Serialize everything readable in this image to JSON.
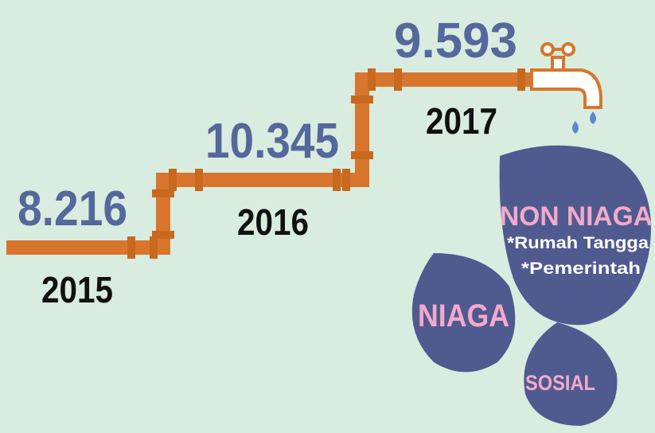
{
  "steps": [
    {
      "value": "8.216",
      "year": "2015"
    },
    {
      "value": "10.345",
      "year": "2016"
    },
    {
      "value": "9.593",
      "year": "2017"
    }
  ],
  "drops": {
    "non_niaga": {
      "title": "NON NIAGA",
      "items": [
        "*Rumah Tangga",
        "*Pemerintah"
      ]
    },
    "niaga": "NIAGA",
    "sosial": "SOSIAL"
  }
}
